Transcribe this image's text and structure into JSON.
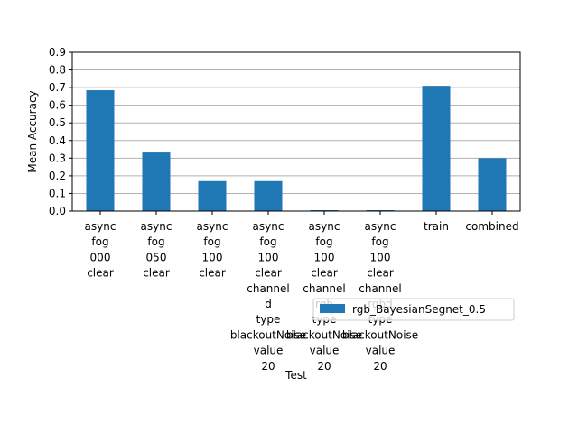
{
  "chart_data": {
    "type": "bar",
    "xlabel": "Test",
    "ylabel": "Mean Accuracy",
    "ylim": [
      0,
      0.9
    ],
    "yticks": [
      "0.0",
      "0.1",
      "0.2",
      "0.3",
      "0.4",
      "0.5",
      "0.6",
      "0.7",
      "0.8",
      "0.9"
    ],
    "grid": true,
    "legend_position": "lower-right",
    "categories": [
      [
        "async",
        "fog",
        "000",
        "clear"
      ],
      [
        "async",
        "fog",
        "050",
        "clear"
      ],
      [
        "async",
        "fog",
        "100",
        "clear"
      ],
      [
        "async",
        "fog",
        "100",
        "clear",
        "channel",
        "d",
        "type",
        "blackoutNoise",
        "value",
        "20"
      ],
      [
        "async",
        "fog",
        "100",
        "clear",
        "channel",
        "rgb",
        "type",
        "blackoutNoise",
        "value",
        "20"
      ],
      [
        "async",
        "fog",
        "100",
        "clear",
        "channel",
        "rgbd",
        "type",
        "blackoutNoise",
        "value",
        "20"
      ],
      [
        "train"
      ],
      [
        "combined"
      ]
    ],
    "series": [
      {
        "name": "rgb_BayesianSegnet_0.5",
        "color": "#1f77b4",
        "values": [
          0.685,
          0.332,
          0.17,
          0.17,
          0.005,
          0.005,
          0.71,
          0.3
        ]
      }
    ]
  }
}
